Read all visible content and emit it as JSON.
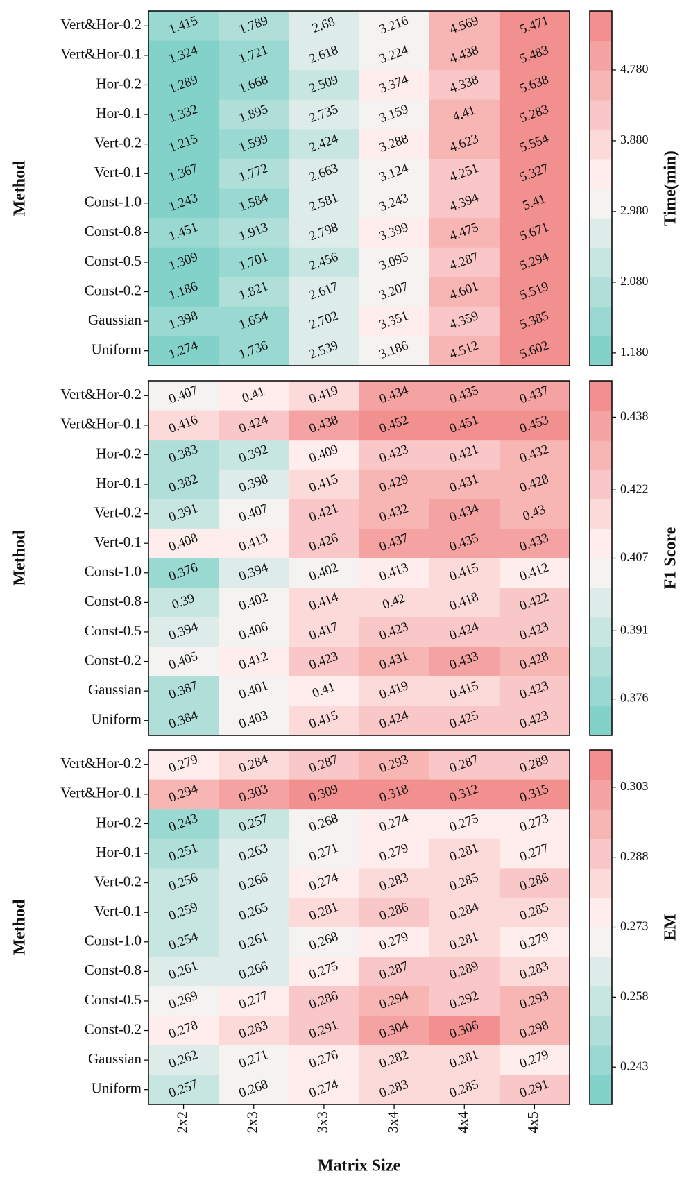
{
  "chart_data": [
    {
      "type": "heatmap",
      "ylabel": "Method",
      "colorbar_label": "Time(min)",
      "y_categories": [
        "Vert&Hor-0.2",
        "Vert&Hor-0.1",
        "Hor-0.2",
        "Hor-0.1",
        "Vert-0.2",
        "Vert-0.1",
        "Const-1.0",
        "Const-0.8",
        "Const-0.5",
        "Const-0.2",
        "Gaussian",
        "Uniform"
      ],
      "values": [
        [
          1.415,
          1.789,
          2.68,
          3.216,
          4.569,
          5.471
        ],
        [
          1.324,
          1.721,
          2.618,
          3.224,
          4.438,
          5.483
        ],
        [
          1.289,
          1.668,
          2.509,
          3.374,
          4.338,
          5.638
        ],
        [
          1.332,
          1.895,
          2.735,
          3.159,
          4.41,
          5.283
        ],
        [
          1.215,
          1.599,
          2.424,
          3.288,
          4.623,
          5.554
        ],
        [
          1.367,
          1.772,
          2.663,
          3.124,
          4.251,
          5.327
        ],
        [
          1.243,
          1.584,
          2.581,
          3.243,
          4.394,
          5.41
        ],
        [
          1.451,
          1.913,
          2.798,
          3.399,
          4.475,
          5.671
        ],
        [
          1.309,
          1.701,
          2.456,
          3.095,
          4.287,
          5.294
        ],
        [
          1.186,
          1.821,
          2.617,
          3.207,
          4.601,
          5.519
        ],
        [
          1.398,
          1.654,
          2.702,
          3.351,
          4.359,
          5.385
        ],
        [
          1.274,
          1.736,
          2.539,
          3.186,
          4.512,
          5.602
        ]
      ],
      "clim": [
        1.02,
        5.53
      ],
      "cticks": [
        {
          "value": 1.18,
          "label": "1.180"
        },
        {
          "value": 2.08,
          "label": "2.080"
        },
        {
          "value": 2.98,
          "label": "2.980"
        },
        {
          "value": 3.88,
          "label": "3.880"
        },
        {
          "value": 4.78,
          "label": "4.780"
        }
      ],
      "colormap": [
        "#78cfc5",
        "#fff6f5",
        "#f18686"
      ],
      "levels": 12
    },
    {
      "type": "heatmap",
      "ylabel": "Method",
      "colorbar_label": "F1 Score",
      "y_categories": [
        "Vert&Hor-0.2",
        "Vert&Hor-0.1",
        "Hor-0.2",
        "Hor-0.1",
        "Vert-0.2",
        "Vert-0.1",
        "Const-1.0",
        "Const-0.8",
        "Const-0.5",
        "Const-0.2",
        "Gaussian",
        "Uniform"
      ],
      "values": [
        [
          0.407,
          0.41,
          0.419,
          0.434,
          0.435,
          0.437
        ],
        [
          0.416,
          0.424,
          0.438,
          0.452,
          0.451,
          0.453
        ],
        [
          0.383,
          0.392,
          0.409,
          0.423,
          0.421,
          0.432
        ],
        [
          0.382,
          0.398,
          0.415,
          0.429,
          0.431,
          0.428
        ],
        [
          0.391,
          0.407,
          0.421,
          0.432,
          0.434,
          0.43
        ],
        [
          0.408,
          0.413,
          0.426,
          0.437,
          0.435,
          0.433
        ],
        [
          0.376,
          0.394,
          0.402,
          0.413,
          0.415,
          0.412
        ],
        [
          0.39,
          0.402,
          0.414,
          0.42,
          0.418,
          0.422
        ],
        [
          0.394,
          0.406,
          0.417,
          0.423,
          0.424,
          0.423
        ],
        [
          0.405,
          0.412,
          0.423,
          0.431,
          0.433,
          0.428
        ],
        [
          0.387,
          0.401,
          0.41,
          0.419,
          0.415,
          0.423
        ],
        [
          0.384,
          0.403,
          0.415,
          0.424,
          0.425,
          0.423
        ]
      ],
      "clim": [
        0.368,
        0.446
      ],
      "cticks": [
        0.376,
        0.391,
        0.407,
        0.422,
        0.438
      ],
      "colormap": [
        "#78cfc5",
        "#fff6f5",
        "#f18686"
      ],
      "levels": 12
    },
    {
      "type": "heatmap",
      "ylabel": "Method",
      "colorbar_label": "EM",
      "xlabel": "Matrix Size",
      "x_categories": [
        "2x2",
        "2x3",
        "3x3",
        "3x4",
        "4x4",
        "4x5"
      ],
      "y_categories": [
        "Vert&Hor-0.2",
        "Vert&Hor-0.1",
        "Hor-0.2",
        "Hor-0.1",
        "Vert-0.2",
        "Vert-0.1",
        "Const-1.0",
        "Const-0.8",
        "Const-0.5",
        "Const-0.2",
        "Gaussian",
        "Uniform"
      ],
      "values": [
        [
          0.279,
          0.284,
          0.287,
          0.293,
          0.287,
          0.289
        ],
        [
          0.294,
          0.303,
          0.309,
          0.318,
          0.312,
          0.315
        ],
        [
          0.243,
          0.257,
          0.268,
          0.274,
          0.275,
          0.273
        ],
        [
          0.251,
          0.263,
          0.271,
          0.279,
          0.281,
          0.277
        ],
        [
          0.256,
          0.266,
          0.274,
          0.283,
          0.285,
          0.286
        ],
        [
          0.259,
          0.265,
          0.281,
          0.286,
          0.284,
          0.285
        ],
        [
          0.254,
          0.261,
          0.268,
          0.279,
          0.281,
          0.279
        ],
        [
          0.261,
          0.266,
          0.275,
          0.287,
          0.289,
          0.283
        ],
        [
          0.269,
          0.277,
          0.286,
          0.294,
          0.292,
          0.293
        ],
        [
          0.278,
          0.283,
          0.291,
          0.304,
          0.306,
          0.298
        ],
        [
          0.262,
          0.271,
          0.276,
          0.282,
          0.281,
          0.279
        ],
        [
          0.257,
          0.268,
          0.274,
          0.283,
          0.285,
          0.291
        ]
      ],
      "clim": [
        0.235,
        0.311
      ],
      "cticks": [
        0.243,
        0.258,
        0.273,
        0.288,
        0.303
      ],
      "colormap": [
        "#78cfc5",
        "#fff6f5",
        "#f18686"
      ],
      "levels": 12
    }
  ]
}
